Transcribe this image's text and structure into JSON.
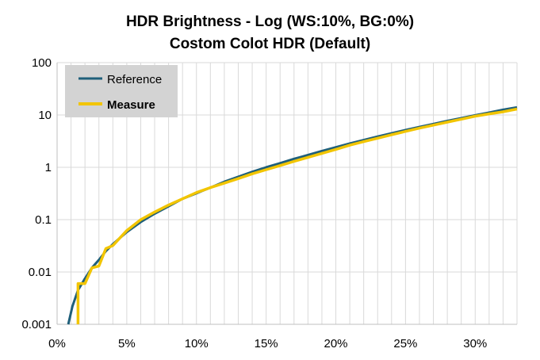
{
  "chart_data": {
    "type": "line",
    "title_line1": "HDR Brightness - Log (WS:10%, BG:0%)",
    "title_line2": "Costom Colot HDR (Default)",
    "xlabel": "",
    "ylabel": "",
    "x_scale": "linear",
    "y_scale": "log",
    "xlim": [
      0,
      33
    ],
    "ylim": [
      0.001,
      100
    ],
    "x_ticks": [
      0,
      5,
      10,
      15,
      20,
      25,
      30
    ],
    "x_tick_labels": [
      "0%",
      "5%",
      "10%",
      "15%",
      "20%",
      "25%",
      "30%"
    ],
    "y_ticks": [
      0.001,
      0.01,
      0.1,
      1,
      10,
      100
    ],
    "y_tick_labels": [
      "0.001",
      "0.01",
      "0.1",
      "1",
      "10",
      "100"
    ],
    "grid": true,
    "legend_position": "top-left",
    "series": [
      {
        "name": "Reference",
        "color": "#1f5f7a",
        "x": [
          0.8,
          1.1,
          1.5,
          2.0,
          2.5,
          3.0,
          3.5,
          4.0,
          5.0,
          6.0,
          7.0,
          8.0,
          9.0,
          10.0,
          11.0,
          12.0,
          13.0,
          14.0,
          15.0,
          16.0,
          17.0,
          18.0,
          19.0,
          20.0,
          21.0,
          22.0,
          23.0,
          24.0,
          25.0,
          26.0,
          27.0,
          28.0,
          29.0,
          30.0,
          31.0,
          32.0,
          33.0
        ],
        "y": [
          0.001,
          0.0022,
          0.0045,
          0.0075,
          0.012,
          0.017,
          0.025,
          0.034,
          0.058,
          0.09,
          0.13,
          0.18,
          0.25,
          0.32,
          0.41,
          0.53,
          0.66,
          0.82,
          1.0,
          1.2,
          1.45,
          1.72,
          2.05,
          2.42,
          2.85,
          3.32,
          3.87,
          4.47,
          5.15,
          5.9,
          6.75,
          7.7,
          8.7,
          9.85,
          11.1,
          12.6,
          14.0
        ]
      },
      {
        "name": "Measure",
        "color": "#f2c500",
        "x": [
          1.5,
          1.5,
          2.0,
          2.5,
          3.0,
          3.5,
          4.0,
          5.0,
          6.0,
          7.0,
          8.0,
          9.0,
          10.0,
          11.0,
          12.0,
          13.0,
          14.0,
          15.0,
          16.0,
          17.0,
          18.0,
          19.0,
          20.0,
          21.0,
          22.0,
          23.0,
          24.0,
          25.0,
          26.0,
          27.0,
          28.0,
          29.0,
          30.0,
          31.0,
          32.0,
          33.0
        ],
        "y": [
          0.001,
          0.006,
          0.006,
          0.012,
          0.013,
          0.028,
          0.032,
          0.062,
          0.1,
          0.14,
          0.19,
          0.25,
          0.33,
          0.41,
          0.5,
          0.61,
          0.75,
          0.9,
          1.08,
          1.3,
          1.55,
          1.85,
          2.2,
          2.65,
          3.1,
          3.6,
          4.2,
          4.85,
          5.6,
          6.4,
          7.3,
          8.3,
          9.5,
          10.5,
          11.5,
          13.0
        ]
      }
    ]
  }
}
